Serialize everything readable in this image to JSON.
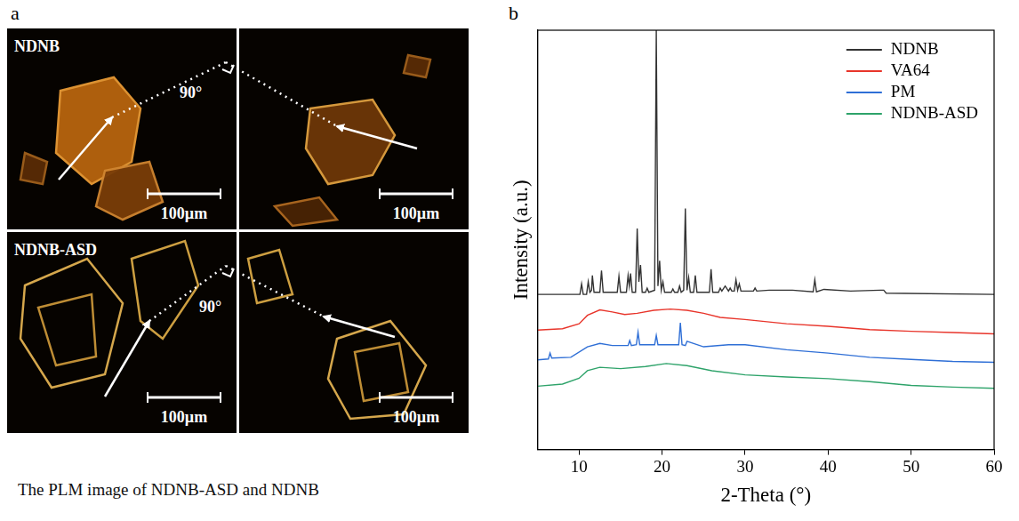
{
  "panel_a": {
    "letter": "a",
    "caption": "The PLM image of NDNB-ASD and NDNB",
    "rows": [
      {
        "label": "NDNB",
        "angle": "90°",
        "scale_bars": [
          "100µm",
          "100µm"
        ]
      },
      {
        "label": "NDNB-ASD",
        "angle": "90°",
        "scale_bars": [
          "100µm",
          "100µm"
        ]
      }
    ]
  },
  "chart_data": {
    "panel_label": "b",
    "type": "line",
    "x_label": "2-Theta (°)",
    "y_label": "Intensity (a.u.)",
    "xlim": [
      5,
      60
    ],
    "xticks": [
      10,
      20,
      30,
      40,
      50,
      60
    ],
    "ylim": [
      0,
      100
    ],
    "yticks": [],
    "tick_labels": "x",
    "grid": false,
    "legend": "upper right",
    "series": [
      {
        "name": "NDNB",
        "color": "#333333",
        "x": [
          5,
          10.1,
          10.3,
          10.5,
          10.9,
          11.1,
          11.3,
          11.5,
          11.6,
          11.8,
          12.5,
          12.7,
          12.9,
          14.6,
          14.8,
          15.0,
          15.7,
          15.9,
          16.05,
          16.2,
          16.4,
          16.8,
          17.0,
          17.2,
          17.4,
          17.6,
          18.0,
          18.2,
          18.4,
          19.1,
          19.3,
          19.5,
          19.7,
          19.9,
          20.1,
          20.3,
          21.1,
          21.3,
          21.5,
          21.9,
          22.1,
          22.3,
          22.6,
          22.8,
          23.0,
          23.2,
          23.4,
          23.8,
          24.0,
          24.2,
          25.7,
          25.9,
          26.1,
          26.8,
          27.0,
          27.2,
          27.6,
          28.0,
          28.2,
          28.4,
          28.7,
          28.9,
          29.1,
          29.3,
          29.5,
          31.0,
          31.2,
          31.4,
          32.9,
          34.7,
          35.7,
          38.2,
          38.4,
          38.6,
          39.5,
          42.7,
          46.3,
          46.7,
          47.0,
          60
        ],
        "values": [
          37,
          37,
          39.5,
          37,
          37,
          40,
          37.5,
          38,
          41.5,
          37.5,
          37.5,
          42.7,
          37.5,
          37.5,
          41.3,
          37.5,
          37.5,
          41.5,
          39,
          42,
          37.5,
          37.5,
          52.7,
          40,
          44,
          37.5,
          37.5,
          38.5,
          37.5,
          38,
          100,
          39,
          45,
          38,
          40,
          37.5,
          37.5,
          38.3,
          37.5,
          37.5,
          39,
          37.5,
          38,
          57.5,
          38,
          41,
          37.5,
          37.5,
          41.5,
          37.5,
          37.5,
          43,
          37.5,
          37.5,
          38.5,
          37.8,
          39,
          37.8,
          38.5,
          37.8,
          37.8,
          40.5,
          38,
          39.5,
          37.8,
          37.8,
          38.5,
          37.8,
          38,
          38,
          38,
          37.6,
          40.5,
          37.6,
          38.2,
          37.8,
          38,
          38,
          37.3,
          37
        ]
      },
      {
        "name": "VA64",
        "color": "#e8352b",
        "x": [
          5,
          8,
          10,
          11,
          12.5,
          14,
          15.5,
          17,
          19,
          21,
          23,
          25,
          27,
          30,
          35,
          40,
          45,
          50,
          55,
          60
        ],
        "values": [
          28.5,
          28.8,
          30,
          32,
          33.3,
          32.8,
          32.2,
          32.5,
          33.2,
          33.5,
          33.2,
          32.5,
          31.5,
          31,
          30,
          29.4,
          28.6,
          28.2,
          27.9,
          27.6
        ]
      },
      {
        "name": "PM",
        "color": "#2f6fd6",
        "x": [
          5,
          6.3,
          6.5,
          6.7,
          9,
          11,
          12.5,
          14,
          15.9,
          16.1,
          16.3,
          16.9,
          17.1,
          17.3,
          19.1,
          19.3,
          19.5,
          22.0,
          22.2,
          22.4,
          22.8,
          23.0,
          25,
          28,
          30,
          35,
          40,
          45,
          50,
          55,
          60
        ],
        "values": [
          21.4,
          21.6,
          23,
          21.8,
          22,
          24.5,
          25.3,
          24.8,
          24.8,
          26,
          24.8,
          25,
          28,
          25,
          25,
          27.2,
          25,
          25,
          30.2,
          25,
          24.8,
          25.8,
          24.5,
          25,
          25,
          23.8,
          23,
          22,
          21.5,
          21,
          20.8
        ]
      },
      {
        "name": "NDNB-ASD",
        "color": "#2ea36a",
        "x": [
          5,
          8,
          10,
          11,
          12.5,
          15,
          18,
          20.5,
          23,
          26,
          30,
          35,
          40,
          45,
          50,
          55,
          60
        ],
        "values": [
          15.1,
          15.6,
          17,
          18.8,
          19.6,
          19.3,
          19.8,
          20.5,
          20,
          18.8,
          17.8,
          17.3,
          16.9,
          16.2,
          15.3,
          14.9,
          14.6
        ]
      }
    ]
  }
}
